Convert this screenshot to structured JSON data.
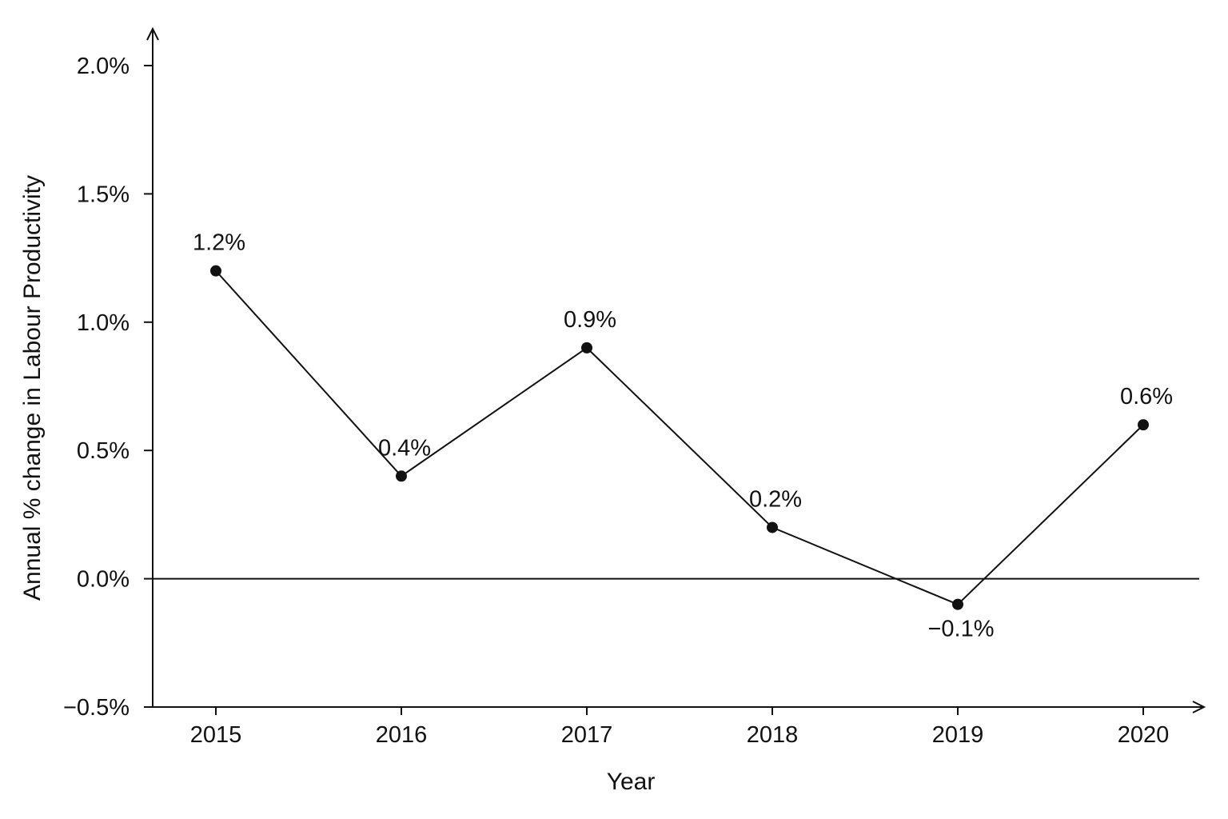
{
  "chart_data": {
    "type": "line",
    "xlabel": "Year",
    "ylabel": "Annual % change in Labour Productivity",
    "x": [
      "2015",
      "2016",
      "2017",
      "2018",
      "2019",
      "2020"
    ],
    "series": [
      {
        "values": [
          1.2,
          0.4,
          0.9,
          0.2,
          -0.1,
          0.6
        ],
        "data_labels": [
          "1.2%",
          "0.4%",
          "0.9%",
          "0.2%",
          "−0.1%",
          "0.6%"
        ]
      }
    ],
    "ylim": [
      -0.5,
      2.0
    ],
    "y_ticks": [
      -0.5,
      0.0,
      0.5,
      1.0,
      1.5,
      2.0
    ],
    "y_tick_labels": [
      "−0.5%",
      "0.0%",
      "0.5%",
      "1.0%",
      "1.5%",
      "2.0%"
    ],
    "reference_line": 0.0,
    "grid": false,
    "legend": "none",
    "colors": {
      "line": "#111111",
      "marker": "#111111"
    }
  }
}
